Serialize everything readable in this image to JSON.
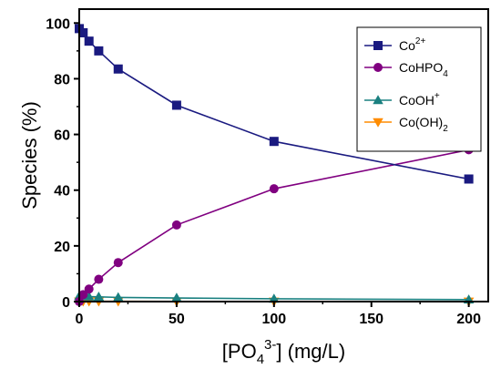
{
  "chart_data": {
    "type": "line",
    "xlabel": {
      "main": "[PO",
      "sub": "4",
      "sup": "3-",
      "tail": "] (mg/L)"
    },
    "ylabel": "Species (%)",
    "xlim": [
      0,
      210
    ],
    "ylim": [
      0,
      105
    ],
    "xticks": [
      0,
      50,
      100,
      150,
      200
    ],
    "yticks": [
      0,
      20,
      40,
      60,
      80,
      100
    ],
    "grid": false,
    "legend_position": "top-right",
    "series": [
      {
        "name": {
          "main": "Co",
          "sup": "2+",
          "sub": ""
        },
        "color": "#1a1a80",
        "marker": "square",
        "points": [
          [
            0,
            98.0
          ],
          [
            2,
            96.5
          ],
          [
            5,
            93.5
          ],
          [
            10,
            90.0
          ],
          [
            20,
            83.5
          ],
          [
            50,
            70.5
          ],
          [
            100,
            57.5
          ],
          [
            200,
            44.0
          ]
        ]
      },
      {
        "name": {
          "main": "CoHPO",
          "sub": "4",
          "sup": ""
        },
        "color": "#800080",
        "marker": "circle",
        "points": [
          [
            0,
            0.0
          ],
          [
            2,
            2.5
          ],
          [
            5,
            4.5
          ],
          [
            10,
            8.0
          ],
          [
            20,
            14.0
          ],
          [
            50,
            27.5
          ],
          [
            100,
            40.5
          ],
          [
            200,
            54.5
          ]
        ]
      },
      {
        "name": {
          "main": "CoOH",
          "sup": "+",
          "sub": ""
        },
        "color": "#1a8080",
        "marker": "triangle-up",
        "points": [
          [
            0,
            2.0
          ],
          [
            2,
            2.0
          ],
          [
            5,
            1.8
          ],
          [
            10,
            1.7
          ],
          [
            20,
            1.5
          ],
          [
            50,
            1.3
          ],
          [
            100,
            1.0
          ],
          [
            200,
            0.7
          ]
        ]
      },
      {
        "name": {
          "main": "Co(OH)",
          "sub": "2",
          "sup": ""
        },
        "color": "#ff8c00",
        "marker": "triangle-down",
        "points": [
          [
            0,
            0.1
          ],
          [
            2,
            0.1
          ],
          [
            5,
            0.1
          ],
          [
            10,
            0.1
          ],
          [
            20,
            0.1
          ],
          [
            50,
            0.05
          ],
          [
            100,
            0.05
          ],
          [
            200,
            0.05
          ]
        ]
      }
    ]
  }
}
